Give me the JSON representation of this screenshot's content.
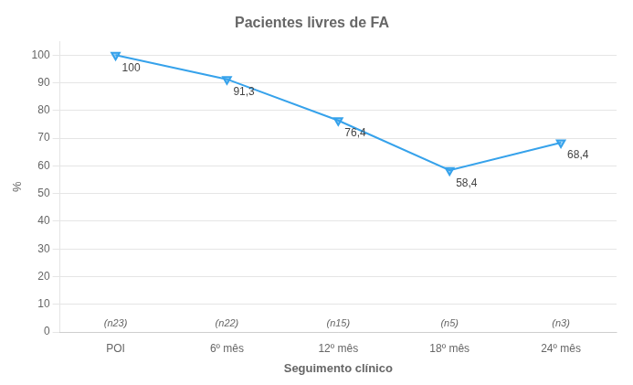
{
  "chart_data": {
    "type": "line",
    "title": "Pacientes livres de FA",
    "xlabel": "Seguimento clínico",
    "ylabel": "%",
    "categories": [
      "POI",
      "6º mês",
      "12º mês",
      "18º mês",
      "24º mês"
    ],
    "values": [
      100,
      91.3,
      76.4,
      58.4,
      68.4
    ],
    "value_labels": [
      "100",
      "91,3",
      "76,4",
      "58,4",
      "68,4"
    ],
    "data_labels": true,
    "marker": "triangle_down",
    "annotations": [
      {
        "x": "POI",
        "text": "(n23)"
      },
      {
        "x": "6º mês",
        "text": "(n22)"
      },
      {
        "x": "12º mês",
        "text": "(n15)"
      },
      {
        "x": "18º mês",
        "text": "(n5)"
      },
      {
        "x": "24º mês",
        "text": "(n3)"
      }
    ],
    "ylim": [
      0,
      105
    ],
    "yticks": [
      0,
      10,
      20,
      30,
      40,
      50,
      60,
      70,
      80,
      90,
      100
    ],
    "grid": true
  }
}
